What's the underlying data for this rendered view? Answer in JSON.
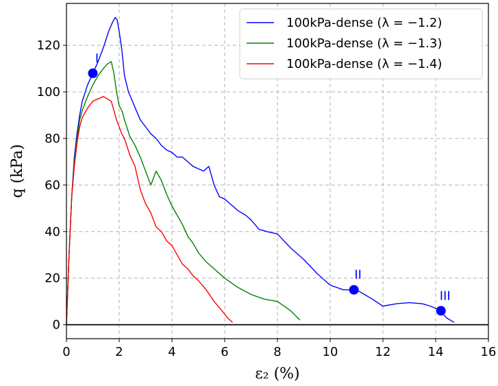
{
  "chart_data": {
    "type": "line",
    "xlabel": "ε₂ (%)",
    "ylabel": "q (kPa)",
    "xlim": [
      0,
      16
    ],
    "ylim": [
      -6,
      138
    ],
    "xticks": [
      0,
      2,
      4,
      6,
      8,
      10,
      12,
      14,
      16
    ],
    "yticks": [
      0,
      20,
      40,
      60,
      80,
      100,
      120
    ],
    "grid": true,
    "grid_style": "dashed",
    "legend_position": "top-right",
    "series": [
      {
        "name": "100kPa-dense (λ = −1.2)",
        "color": "#0000ff",
        "x": [
          0,
          0.1,
          0.2,
          0.3,
          0.4,
          0.5,
          0.6,
          0.8,
          1.0,
          1.2,
          1.4,
          1.6,
          1.75,
          1.85,
          1.92,
          2.0,
          2.1,
          2.2,
          2.35,
          2.5,
          2.65,
          2.8,
          3.0,
          3.2,
          3.4,
          3.6,
          3.8,
          4.0,
          4.2,
          4.4,
          4.6,
          4.8,
          5.0,
          5.2,
          5.4,
          5.6,
          5.8,
          6.0,
          6.2,
          6.5,
          6.8,
          7.0,
          7.3,
          7.6,
          8.0,
          8.5,
          9.0,
          9.5,
          10.0,
          10.5,
          11.0,
          11.3,
          11.6,
          12.0,
          12.5,
          13.0,
          13.5,
          13.8,
          14.2,
          14.4,
          14.7
        ],
        "y": [
          0,
          30,
          55,
          72,
          82,
          90,
          96,
          103,
          108,
          113,
          119,
          126,
          130,
          132,
          131,
          126,
          118,
          107,
          100,
          96,
          92,
          88,
          85,
          82,
          80,
          77,
          75,
          74,
          72,
          72,
          70,
          68,
          67,
          66,
          68,
          60,
          55,
          54,
          52,
          49,
          47,
          45,
          41,
          40,
          39,
          33,
          28,
          22,
          17,
          15,
          15,
          13,
          11,
          8,
          9,
          9.5,
          9,
          8,
          6,
          3,
          1
        ]
      },
      {
        "name": "100kPa-dense (λ = −1.3)",
        "color": "#008000",
        "x": [
          0,
          0.1,
          0.2,
          0.3,
          0.4,
          0.5,
          0.6,
          0.8,
          1.0,
          1.2,
          1.4,
          1.55,
          1.7,
          1.8,
          1.9,
          2.0,
          2.1,
          2.2,
          2.4,
          2.6,
          2.8,
          3.0,
          3.2,
          3.4,
          3.6,
          3.8,
          4.0,
          4.2,
          4.4,
          4.6,
          4.8,
          5.0,
          5.3,
          5.6,
          6.0,
          6.5,
          7.0,
          7.5,
          8.0,
          8.5,
          8.85
        ],
        "y": [
          0,
          30,
          55,
          70,
          80,
          88,
          92,
          98,
          103,
          107,
          110,
          112,
          113,
          108,
          100,
          94,
          92,
          88,
          81,
          77,
          72,
          66,
          60,
          66,
          62,
          56,
          51,
          47,
          43,
          38,
          35,
          31,
          27,
          24,
          20,
          16,
          13,
          11,
          10,
          6,
          2
        ]
      },
      {
        "name": "100kPa-dense (λ = −1.4)",
        "color": "#ff0000",
        "x": [
          0,
          0.1,
          0.2,
          0.3,
          0.4,
          0.5,
          0.6,
          0.8,
          1.0,
          1.2,
          1.4,
          1.55,
          1.7,
          1.8,
          1.9,
          2.0,
          2.1,
          2.2,
          2.4,
          2.6,
          2.8,
          3.0,
          3.2,
          3.4,
          3.6,
          3.8,
          4.0,
          4.2,
          4.4,
          4.6,
          4.8,
          5.0,
          5.3,
          5.6,
          5.9,
          6.1,
          6.3
        ],
        "y": [
          0,
          30,
          55,
          68,
          78,
          85,
          89,
          93,
          96,
          97,
          98,
          97,
          96,
          92,
          88,
          85,
          82,
          80,
          73,
          68,
          58,
          52,
          48,
          42,
          40,
          36,
          34,
          30,
          26,
          24,
          21,
          19,
          15,
          10,
          6,
          3,
          1
        ]
      }
    ],
    "annotations": [
      {
        "label": "I",
        "x": 1.0,
        "y": 108,
        "color": "#0000ff"
      },
      {
        "label": "II",
        "x": 10.9,
        "y": 15,
        "color": "#0000ff"
      },
      {
        "label": "III",
        "x": 14.2,
        "y": 6,
        "color": "#0000ff"
      }
    ]
  }
}
